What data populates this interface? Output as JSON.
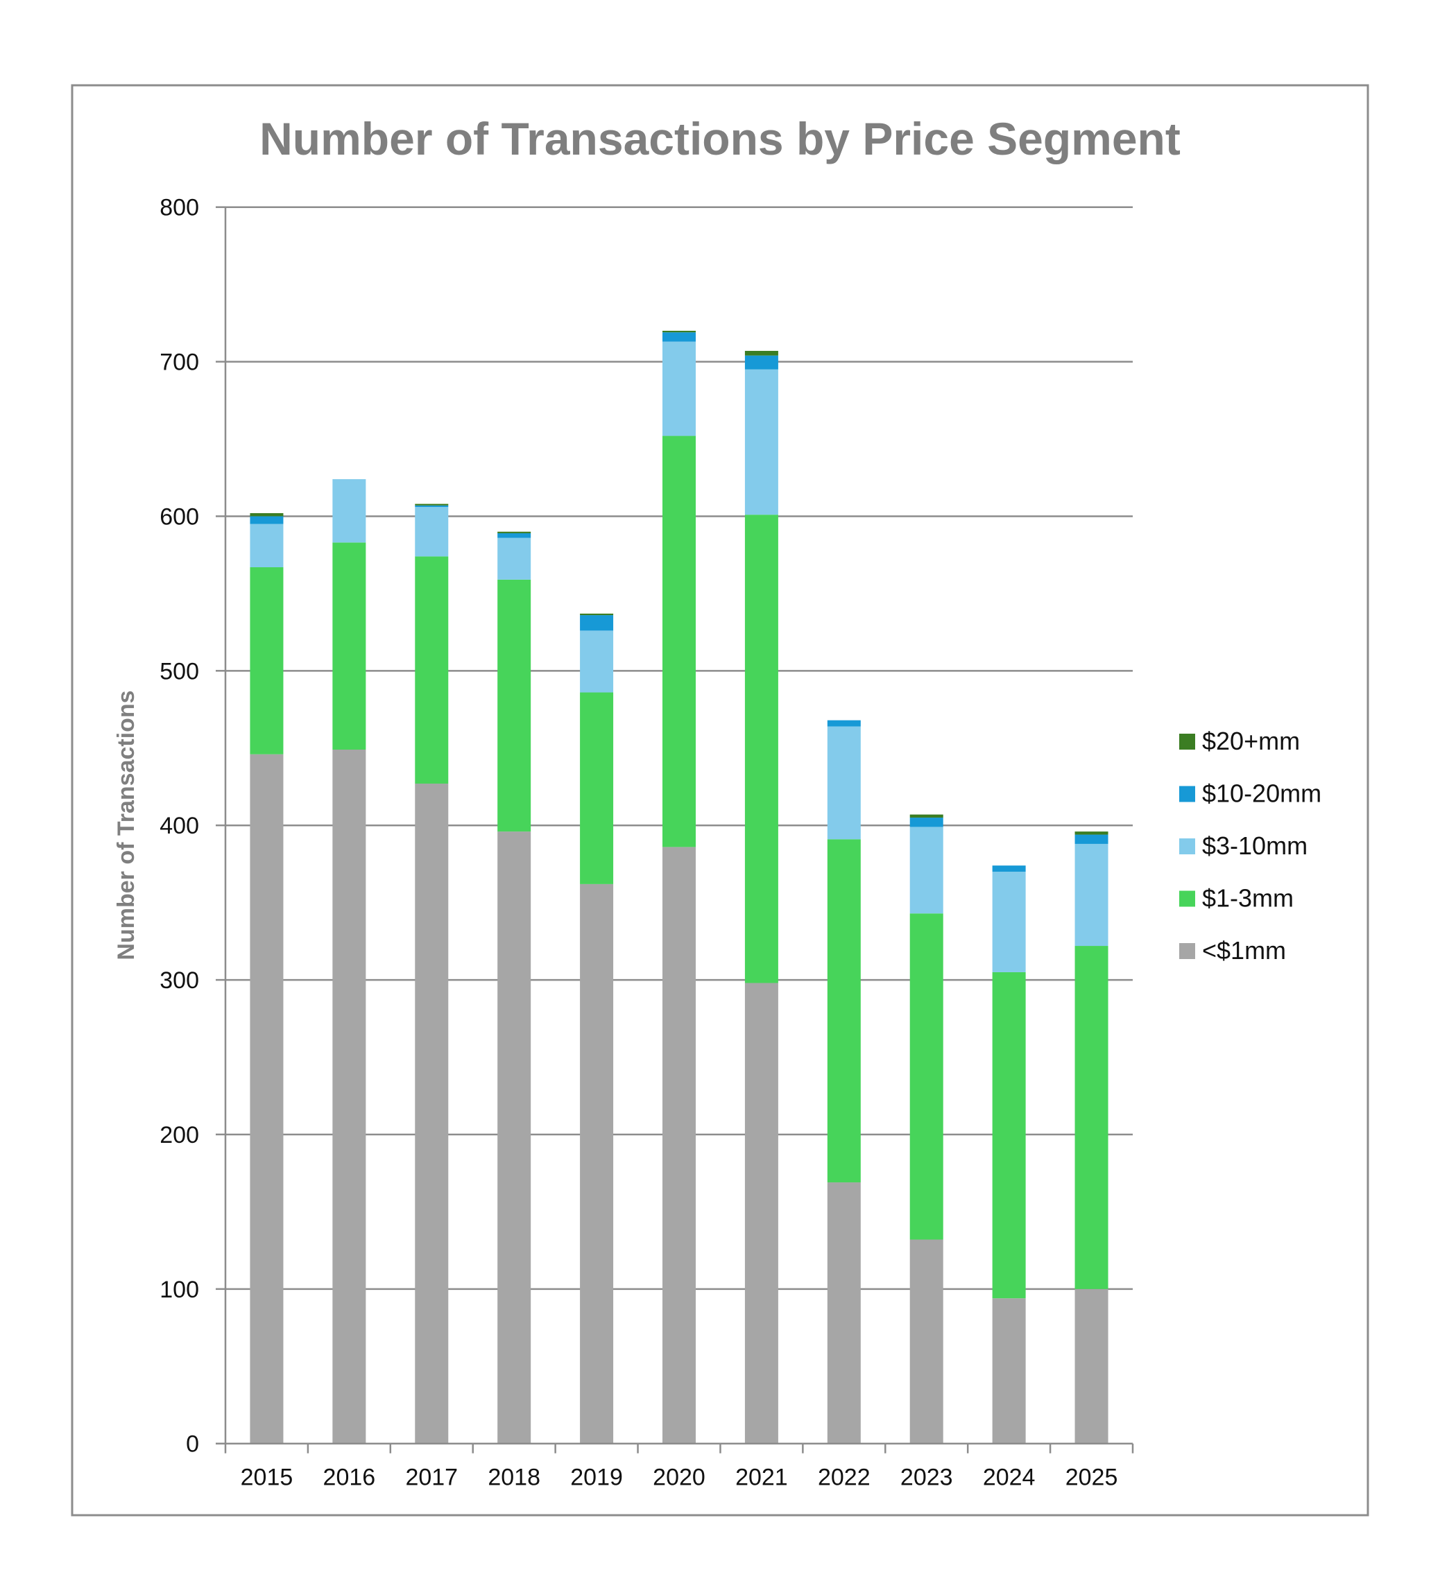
{
  "chart_data": {
    "type": "bar",
    "stacked": true,
    "title": "Number of Transactions by Price Segment",
    "xlabel": "",
    "ylabel": "Number of Transactions",
    "ylim": [
      0,
      800
    ],
    "yticks": [
      0,
      100,
      200,
      300,
      400,
      500,
      600,
      700,
      800
    ],
    "grid": true,
    "legend_position": "right",
    "categories": [
      "2015",
      "2016",
      "2017",
      "2018",
      "2019",
      "2020",
      "2021",
      "2022",
      "2023",
      "2024",
      "2025"
    ],
    "series": [
      {
        "name": "<$1mm",
        "color": "#a6a6a6",
        "values": [
          446,
          449,
          427,
          396,
          362,
          386,
          298,
          169,
          132,
          94,
          100
        ]
      },
      {
        "name": "$1-3mm",
        "color": "#47d45a",
        "values": [
          121,
          134,
          147,
          163,
          124,
          266,
          303,
          222,
          211,
          211,
          222
        ]
      },
      {
        "name": "$3-10mm",
        "color": "#83cbeb",
        "values": [
          28,
          41,
          32,
          27,
          40,
          61,
          94,
          73,
          56,
          65,
          66
        ]
      },
      {
        "name": "$10-20mm",
        "color": "#1799d6",
        "values": [
          5,
          0,
          1,
          3,
          10,
          6,
          9,
          4,
          6,
          4,
          6
        ]
      },
      {
        "name": "$20+mm",
        "color": "#3b7d23",
        "values": [
          2,
          0,
          1,
          1,
          1,
          1,
          3,
          0,
          2,
          0,
          2
        ]
      }
    ],
    "legend_order": [
      "$20+mm",
      "$10-20mm",
      "$3-10mm",
      "$1-3mm",
      "<$1mm"
    ]
  }
}
